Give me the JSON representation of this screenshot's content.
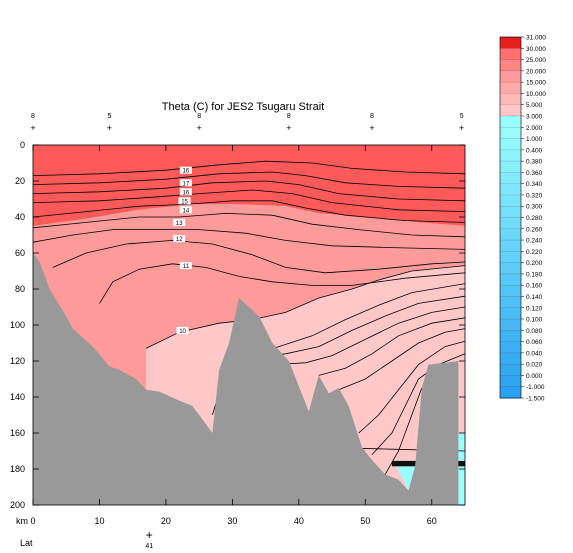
{
  "chart_data": {
    "type": "contour-section",
    "title": "Theta (C) for JES2 Tsugaru Strait",
    "xlabel": "km",
    "ylabel": "",
    "xlim": [
      0,
      65
    ],
    "ylim": [
      200,
      0
    ],
    "x_ticks": [
      "0",
      "10",
      "20",
      "30",
      "40",
      "50",
      "60"
    ],
    "y_ticks": [
      "0",
      "20",
      "40",
      "60",
      "80",
      "100",
      "120",
      "140",
      "160",
      "180",
      "200"
    ],
    "lat_axis": {
      "label": "Lat",
      "ticks": [
        {
          "km": 17.5,
          "label": "41"
        }
      ]
    },
    "top_stations": [
      {
        "km": 0,
        "label": "8"
      },
      {
        "km": 11.5,
        "label": "5"
      },
      {
        "km": 25,
        "label": "8"
      },
      {
        "km": 38.5,
        "label": "8"
      },
      {
        "km": 51,
        "label": "8"
      },
      {
        "km": 64.5,
        "label": "5"
      }
    ],
    "colorbar": {
      "labels": [
        "31.000",
        "30.000",
        "25.000",
        "20.000",
        "15.000",
        "10.000",
        "5.000",
        "3.000",
        "2.000",
        "1.000",
        "0.400",
        "0.380",
        "0.360",
        "0.340",
        "0.320",
        "0.300",
        "0.280",
        "0.260",
        "0.240",
        "0.220",
        "0.200",
        "0.180",
        "0.160",
        "0.140",
        "0.120",
        "0.100",
        "0.080",
        "0.060",
        "0.040",
        "0.020",
        "0.000",
        "-1.000",
        "-1.500"
      ],
      "warm_colors": [
        "#ff5a5a",
        "#ff9b9b",
        "#ffc8c8"
      ],
      "cold_colors": [
        "#9cffff",
        "#2aa0f0"
      ]
    },
    "contour_labels": [
      {
        "value": "16",
        "km": 23,
        "depth": 14
      },
      {
        "value": "17",
        "km": 23,
        "depth": 21
      },
      {
        "value": "16",
        "km": 23,
        "depth": 26
      },
      {
        "value": "15",
        "km": 22.8,
        "depth": 31
      },
      {
        "value": "14",
        "km": 23,
        "depth": 36
      },
      {
        "value": "13",
        "km": 22,
        "depth": 43
      },
      {
        "value": "12",
        "km": 22,
        "depth": 52
      },
      {
        "value": "11",
        "km": 23,
        "depth": 67
      },
      {
        "value": "10",
        "km": 22.5,
        "depth": 103
      }
    ],
    "bathymetry": [
      [
        0,
        60
      ],
      [
        1,
        65
      ],
      [
        2.5,
        80
      ],
      [
        4.5,
        92
      ],
      [
        6,
        102
      ],
      [
        9,
        112
      ],
      [
        11.5,
        123
      ],
      [
        13,
        125
      ],
      [
        15.5,
        130
      ],
      [
        17,
        136
      ],
      [
        19,
        137
      ],
      [
        22,
        142
      ],
      [
        24,
        145
      ],
      [
        26,
        155
      ],
      [
        27,
        160
      ],
      [
        28,
        125
      ],
      [
        29.5,
        110
      ],
      [
        31,
        85
      ],
      [
        32.5,
        90
      ],
      [
        34,
        95
      ],
      [
        36,
        110
      ],
      [
        38.5,
        120
      ],
      [
        41.5,
        148
      ],
      [
        43,
        128
      ],
      [
        44.5,
        138
      ],
      [
        46,
        135
      ],
      [
        47.5,
        145
      ],
      [
        49.5,
        168
      ],
      [
        51,
        175
      ],
      [
        53,
        183
      ],
      [
        55,
        186
      ],
      [
        56.5,
        192
      ],
      [
        57.5,
        178
      ],
      [
        58.5,
        135
      ],
      [
        59.5,
        122
      ],
      [
        62,
        121
      ],
      [
        64,
        120
      ]
    ],
    "water_fill": [
      {
        "color": "#ff5a5a",
        "top": [
          [
            0,
            0
          ],
          [
            65,
            0
          ]
        ],
        "bottom": [
          [
            0,
            45
          ],
          [
            8,
            41
          ],
          [
            16,
            36
          ],
          [
            24,
            33
          ],
          [
            31,
            33
          ],
          [
            38,
            34
          ],
          [
            43,
            38
          ],
          [
            50,
            40
          ],
          [
            58,
            43
          ],
          [
            65,
            45
          ]
        ]
      },
      {
        "color": "#ff9b9b",
        "top": [
          [
            0,
            45
          ],
          [
            8,
            41
          ],
          [
            16,
            36
          ],
          [
            24,
            33
          ],
          [
            31,
            33
          ],
          [
            38,
            34
          ],
          [
            43,
            38
          ],
          [
            50,
            40
          ],
          [
            58,
            43
          ],
          [
            65,
            45
          ]
        ],
        "bottom": [
          [
            0,
            200
          ],
          [
            17,
            200
          ],
          [
            17,
            113
          ],
          [
            22,
            104
          ],
          [
            28,
            99
          ],
          [
            33,
            97
          ],
          [
            38,
            93
          ],
          [
            43,
            85
          ],
          [
            48,
            80
          ],
          [
            52,
            75
          ],
          [
            57,
            70
          ],
          [
            65,
            67
          ]
        ]
      },
      {
        "color": "#ffc8c8",
        "top": [
          [
            17,
            200
          ],
          [
            17,
            113
          ],
          [
            22,
            104
          ],
          [
            28,
            99
          ],
          [
            33,
            97
          ],
          [
            38,
            93
          ],
          [
            43,
            85
          ],
          [
            48,
            80
          ],
          [
            52,
            75
          ],
          [
            57,
            70
          ],
          [
            65,
            67
          ]
        ],
        "bottom": [
          [
            17,
            200
          ],
          [
            65,
            200
          ]
        ]
      }
    ],
    "cold_pools": [
      {
        "color": "#9cffff",
        "points": [
          [
            54.5,
            177
          ],
          [
            58,
            176
          ],
          [
            58,
            189
          ],
          [
            56.5,
            192
          ]
        ]
      },
      {
        "color": "#9cffff",
        "points": [
          [
            64,
            160
          ],
          [
            65,
            160
          ],
          [
            65,
            200
          ],
          [
            64,
            200
          ]
        ]
      }
    ],
    "dark_band": {
      "km_from": 54,
      "km_to": 65,
      "depth_from": 175.5,
      "depth_to": 178.5
    },
    "contours": [
      [
        [
          0,
          17
        ],
        [
          10,
          16
        ],
        [
          20,
          14
        ],
        [
          28,
          11
        ],
        [
          35,
          9
        ],
        [
          42,
          10
        ],
        [
          48,
          13
        ],
        [
          56,
          15
        ],
        [
          65,
          16
        ]
      ],
      [
        [
          0,
          22
        ],
        [
          10,
          21
        ],
        [
          20,
          19
        ],
        [
          28,
          16
        ],
        [
          36,
          15
        ],
        [
          41,
          17
        ],
        [
          47,
          21
        ],
        [
          55,
          23
        ],
        [
          65,
          24
        ]
      ],
      [
        [
          0,
          27
        ],
        [
          10,
          26
        ],
        [
          20,
          24
        ],
        [
          27,
          21
        ],
        [
          35,
          20
        ],
        [
          40,
          22
        ],
        [
          46,
          27
        ],
        [
          55,
          30
        ],
        [
          65,
          31
        ]
      ],
      [
        [
          0,
          32
        ],
        [
          10,
          31
        ],
        [
          18,
          29
        ],
        [
          25,
          27
        ],
        [
          33,
          25
        ],
        [
          39,
          27
        ],
        [
          45,
          32
        ],
        [
          55,
          36
        ],
        [
          65,
          37
        ]
      ],
      [
        [
          0,
          40
        ],
        [
          8,
          37
        ],
        [
          16,
          34
        ],
        [
          23,
          33
        ],
        [
          30,
          31
        ],
        [
          36,
          31
        ],
        [
          41,
          35
        ],
        [
          47,
          39
        ],
        [
          56,
          42
        ],
        [
          65,
          43
        ]
      ],
      [
        [
          0,
          46
        ],
        [
          8,
          43
        ],
        [
          16,
          40
        ],
        [
          22,
          40
        ],
        [
          29,
          38
        ],
        [
          36,
          39
        ],
        [
          42,
          44
        ],
        [
          49,
          47
        ],
        [
          57,
          50
        ],
        [
          65,
          51
        ]
      ],
      [
        [
          0,
          54
        ],
        [
          6,
          50
        ],
        [
          12,
          47
        ],
        [
          18,
          47
        ],
        [
          25,
          47
        ],
        [
          32,
          49
        ],
        [
          38,
          53
        ],
        [
          45,
          56
        ],
        [
          54,
          57
        ],
        [
          65,
          58
        ]
      ],
      [
        [
          3,
          68
        ],
        [
          8,
          60
        ],
        [
          14,
          55
        ],
        [
          21,
          53
        ],
        [
          27,
          55
        ],
        [
          33,
          61
        ],
        [
          38,
          68
        ],
        [
          44,
          71
        ],
        [
          52,
          69
        ],
        [
          60,
          66
        ],
        [
          65,
          65
        ]
      ],
      [
        [
          10,
          88
        ],
        [
          12,
          76
        ],
        [
          16,
          69
        ],
        [
          21,
          66
        ],
        [
          26,
          68
        ],
        [
          31,
          73
        ],
        [
          36,
          76
        ],
        [
          42,
          78
        ],
        [
          48,
          78
        ],
        [
          56,
          74
        ],
        [
          65,
          71
        ]
      ],
      [
        [
          17,
          113
        ],
        [
          22,
          104
        ],
        [
          28,
          99
        ],
        [
          33,
          97
        ],
        [
          38,
          93
        ],
        [
          43,
          85
        ],
        [
          48,
          80
        ],
        [
          52,
          75
        ],
        [
          57,
          70
        ],
        [
          65,
          67
        ]
      ],
      [
        [
          27,
          150
        ],
        [
          29,
          126
        ],
        [
          33,
          116
        ],
        [
          37,
          112
        ],
        [
          42,
          106
        ],
        [
          47,
          97
        ],
        [
          52,
          89
        ],
        [
          57,
          82
        ],
        [
          65,
          77
        ]
      ],
      [
        [
          33,
          118
        ],
        [
          38,
          116
        ],
        [
          43,
          112
        ],
        [
          48,
          103
        ],
        [
          53,
          95
        ],
        [
          58,
          88
        ],
        [
          65,
          84
        ]
      ],
      [
        [
          36,
          122
        ],
        [
          41,
          121
        ],
        [
          45,
          117
        ],
        [
          50,
          108
        ],
        [
          55,
          99
        ],
        [
          60,
          93
        ],
        [
          65,
          90
        ]
      ],
      [
        [
          43,
          128
        ],
        [
          47,
          124
        ],
        [
          51,
          116
        ],
        [
          55,
          106
        ],
        [
          60,
          99
        ],
        [
          65,
          96
        ]
      ],
      [
        [
          46,
          136
        ],
        [
          50,
          130
        ],
        [
          54,
          120
        ],
        [
          58,
          110
        ],
        [
          62,
          104
        ],
        [
          65,
          102
        ]
      ],
      [
        [
          49,
          160
        ],
        [
          52,
          150
        ],
        [
          55,
          136
        ],
        [
          58,
          122
        ],
        [
          62,
          112
        ],
        [
          65,
          109
        ]
      ],
      [
        [
          51,
          172
        ],
        [
          54,
          160
        ],
        [
          56,
          145
        ],
        [
          58,
          130
        ],
        [
          61,
          122
        ],
        [
          65,
          116
        ]
      ],
      [
        [
          53,
          183
        ],
        [
          55,
          170
        ],
        [
          57,
          150
        ],
        [
          58.5,
          135
        ]
      ],
      [
        [
          24,
          168
        ],
        [
          34,
          167
        ],
        [
          44,
          168
        ],
        [
          54,
          169
        ],
        [
          65,
          170
        ]
      ]
    ]
  }
}
